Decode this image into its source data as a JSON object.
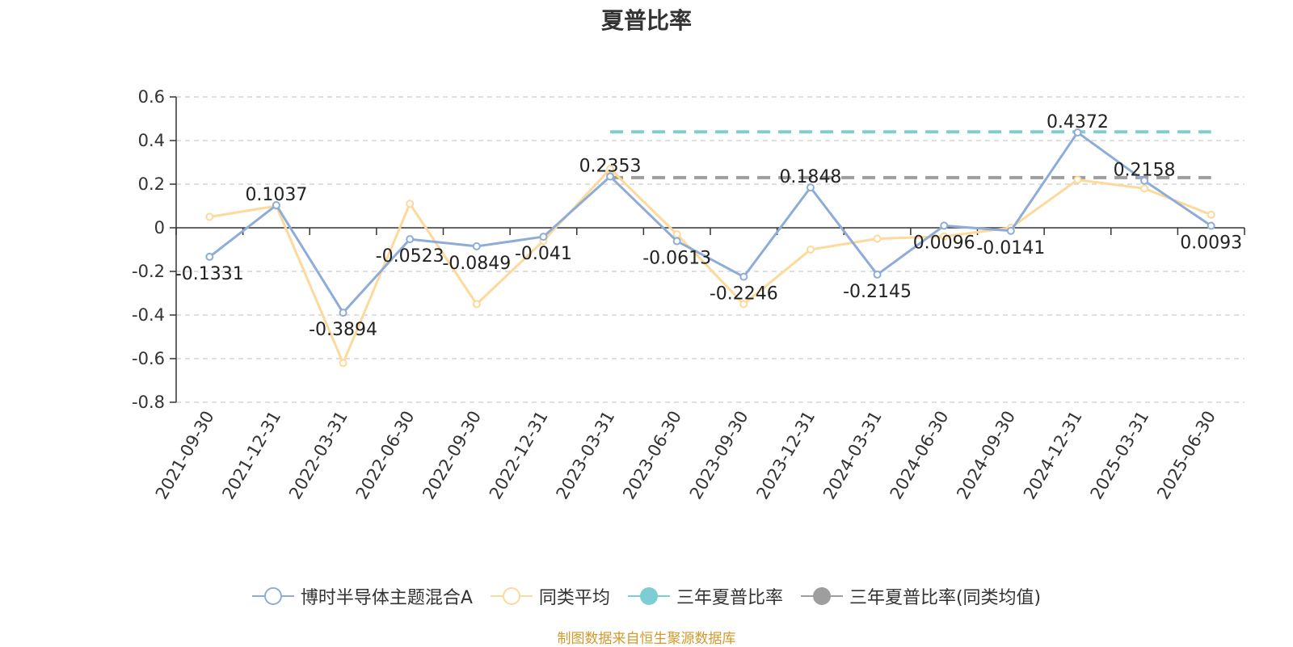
{
  "chart_data": {
    "type": "line",
    "title": "夏普比率",
    "categories": [
      "2021-09-30",
      "2021-12-31",
      "2022-03-31",
      "2022-06-30",
      "2022-09-30",
      "2022-12-31",
      "2023-03-31",
      "2023-06-30",
      "2023-09-30",
      "2023-12-31",
      "2024-03-31",
      "2024-06-30",
      "2024-09-30",
      "2024-12-31",
      "2025-03-31",
      "2025-06-30"
    ],
    "ylim": [
      -0.8,
      0.6
    ],
    "yticks": [
      "0.6",
      "0.4",
      "0.2",
      "0",
      "-0.2",
      "-0.4",
      "-0.6",
      "-0.8"
    ],
    "grid": true,
    "legend_position": "bottom",
    "series": [
      {
        "name": "博时半导体主题混合A",
        "color": "#8eacd9",
        "values": [
          -0.1331,
          0.1037,
          -0.3894,
          -0.0523,
          -0.0849,
          -0.041,
          0.2353,
          -0.0613,
          -0.2246,
          0.1848,
          -0.2145,
          0.0096,
          -0.0141,
          0.4372,
          0.2158,
          0.0093
        ],
        "labels": [
          "-0.1331",
          "0.1037",
          "-0.3894",
          "-0.0523",
          "-0.0849",
          "-0.041",
          "0.2353",
          "-0.0613",
          "-0.2246",
          "0.1848",
          "-0.2145",
          "0.0096",
          "-0.0141",
          "0.4372",
          "0.2158",
          "0.0093"
        ]
      },
      {
        "name": "同类平均",
        "color": "#fdd99b",
        "values": [
          0.05,
          0.1,
          -0.62,
          0.11,
          -0.35,
          -0.06,
          0.27,
          -0.03,
          -0.35,
          -0.1,
          -0.05,
          -0.04,
          0.0,
          0.22,
          0.18,
          0.06
        ]
      }
    ],
    "reference_lines": [
      {
        "name": "三年夏普比率",
        "color": "#7ccdd4",
        "value": 0.44,
        "from": "2023-03-31",
        "to": "2025-06-30"
      },
      {
        "name": "三年夏普比率(同类均值)",
        "color": "#9e9e9e",
        "value": 0.23,
        "from": "2023-03-31",
        "to": "2025-06-30"
      }
    ],
    "source_note": "制图数据来自恒生聚源数据库"
  }
}
